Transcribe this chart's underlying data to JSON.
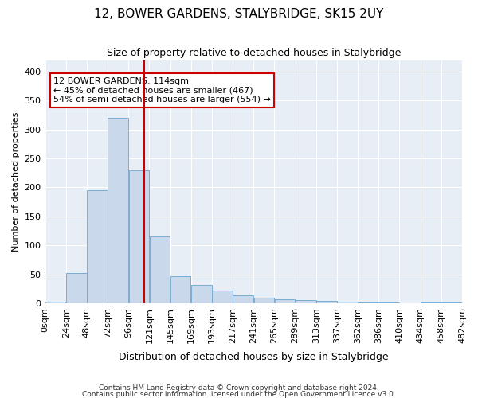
{
  "title": "12, BOWER GARDENS, STALYBRIDGE, SK15 2UY",
  "subtitle": "Size of property relative to detached houses in Stalybridge",
  "xlabel": "Distribution of detached houses by size in Stalybridge",
  "ylabel": "Number of detached properties",
  "footer1": "Contains HM Land Registry data © Crown copyright and database right 2024.",
  "footer2": "Contains public sector information licensed under the Open Government Licence v3.0.",
  "annotation_line1": "12 BOWER GARDENS: 114sqm",
  "annotation_line2": "← 45% of detached houses are smaller (467)",
  "annotation_line3": "54% of semi-detached houses are larger (554) →",
  "property_size": 114,
  "bin_edges": [
    0,
    24,
    48,
    72,
    96,
    120,
    144,
    168,
    192,
    216,
    240,
    264,
    288,
    312,
    336,
    360,
    384,
    408,
    432,
    456,
    480
  ],
  "bar_values": [
    2,
    52,
    195,
    320,
    230,
    115,
    46,
    32,
    22,
    14,
    10,
    7,
    5,
    4,
    2,
    1,
    1,
    0,
    1,
    1
  ],
  "bar_color": "#c9d9eb",
  "bar_edge_color": "#7aadd4",
  "vline_color": "#cc0000",
  "vline_x": 114,
  "annotation_box_color": "#cc0000",
  "background_color": "#e8eef5",
  "ylim": [
    0,
    420
  ],
  "yticks": [
    0,
    50,
    100,
    150,
    200,
    250,
    300,
    350,
    400
  ],
  "tick_labels": [
    "0sqm",
    "24sqm",
    "48sqm",
    "72sqm",
    "96sqm",
    "121sqm",
    "145sqm",
    "169sqm",
    "193sqm",
    "217sqm",
    "241sqm",
    "265sqm",
    "289sqm",
    "313sqm",
    "337sqm",
    "362sqm",
    "386sqm",
    "410sqm",
    "434sqm",
    "458sqm",
    "482sqm"
  ]
}
